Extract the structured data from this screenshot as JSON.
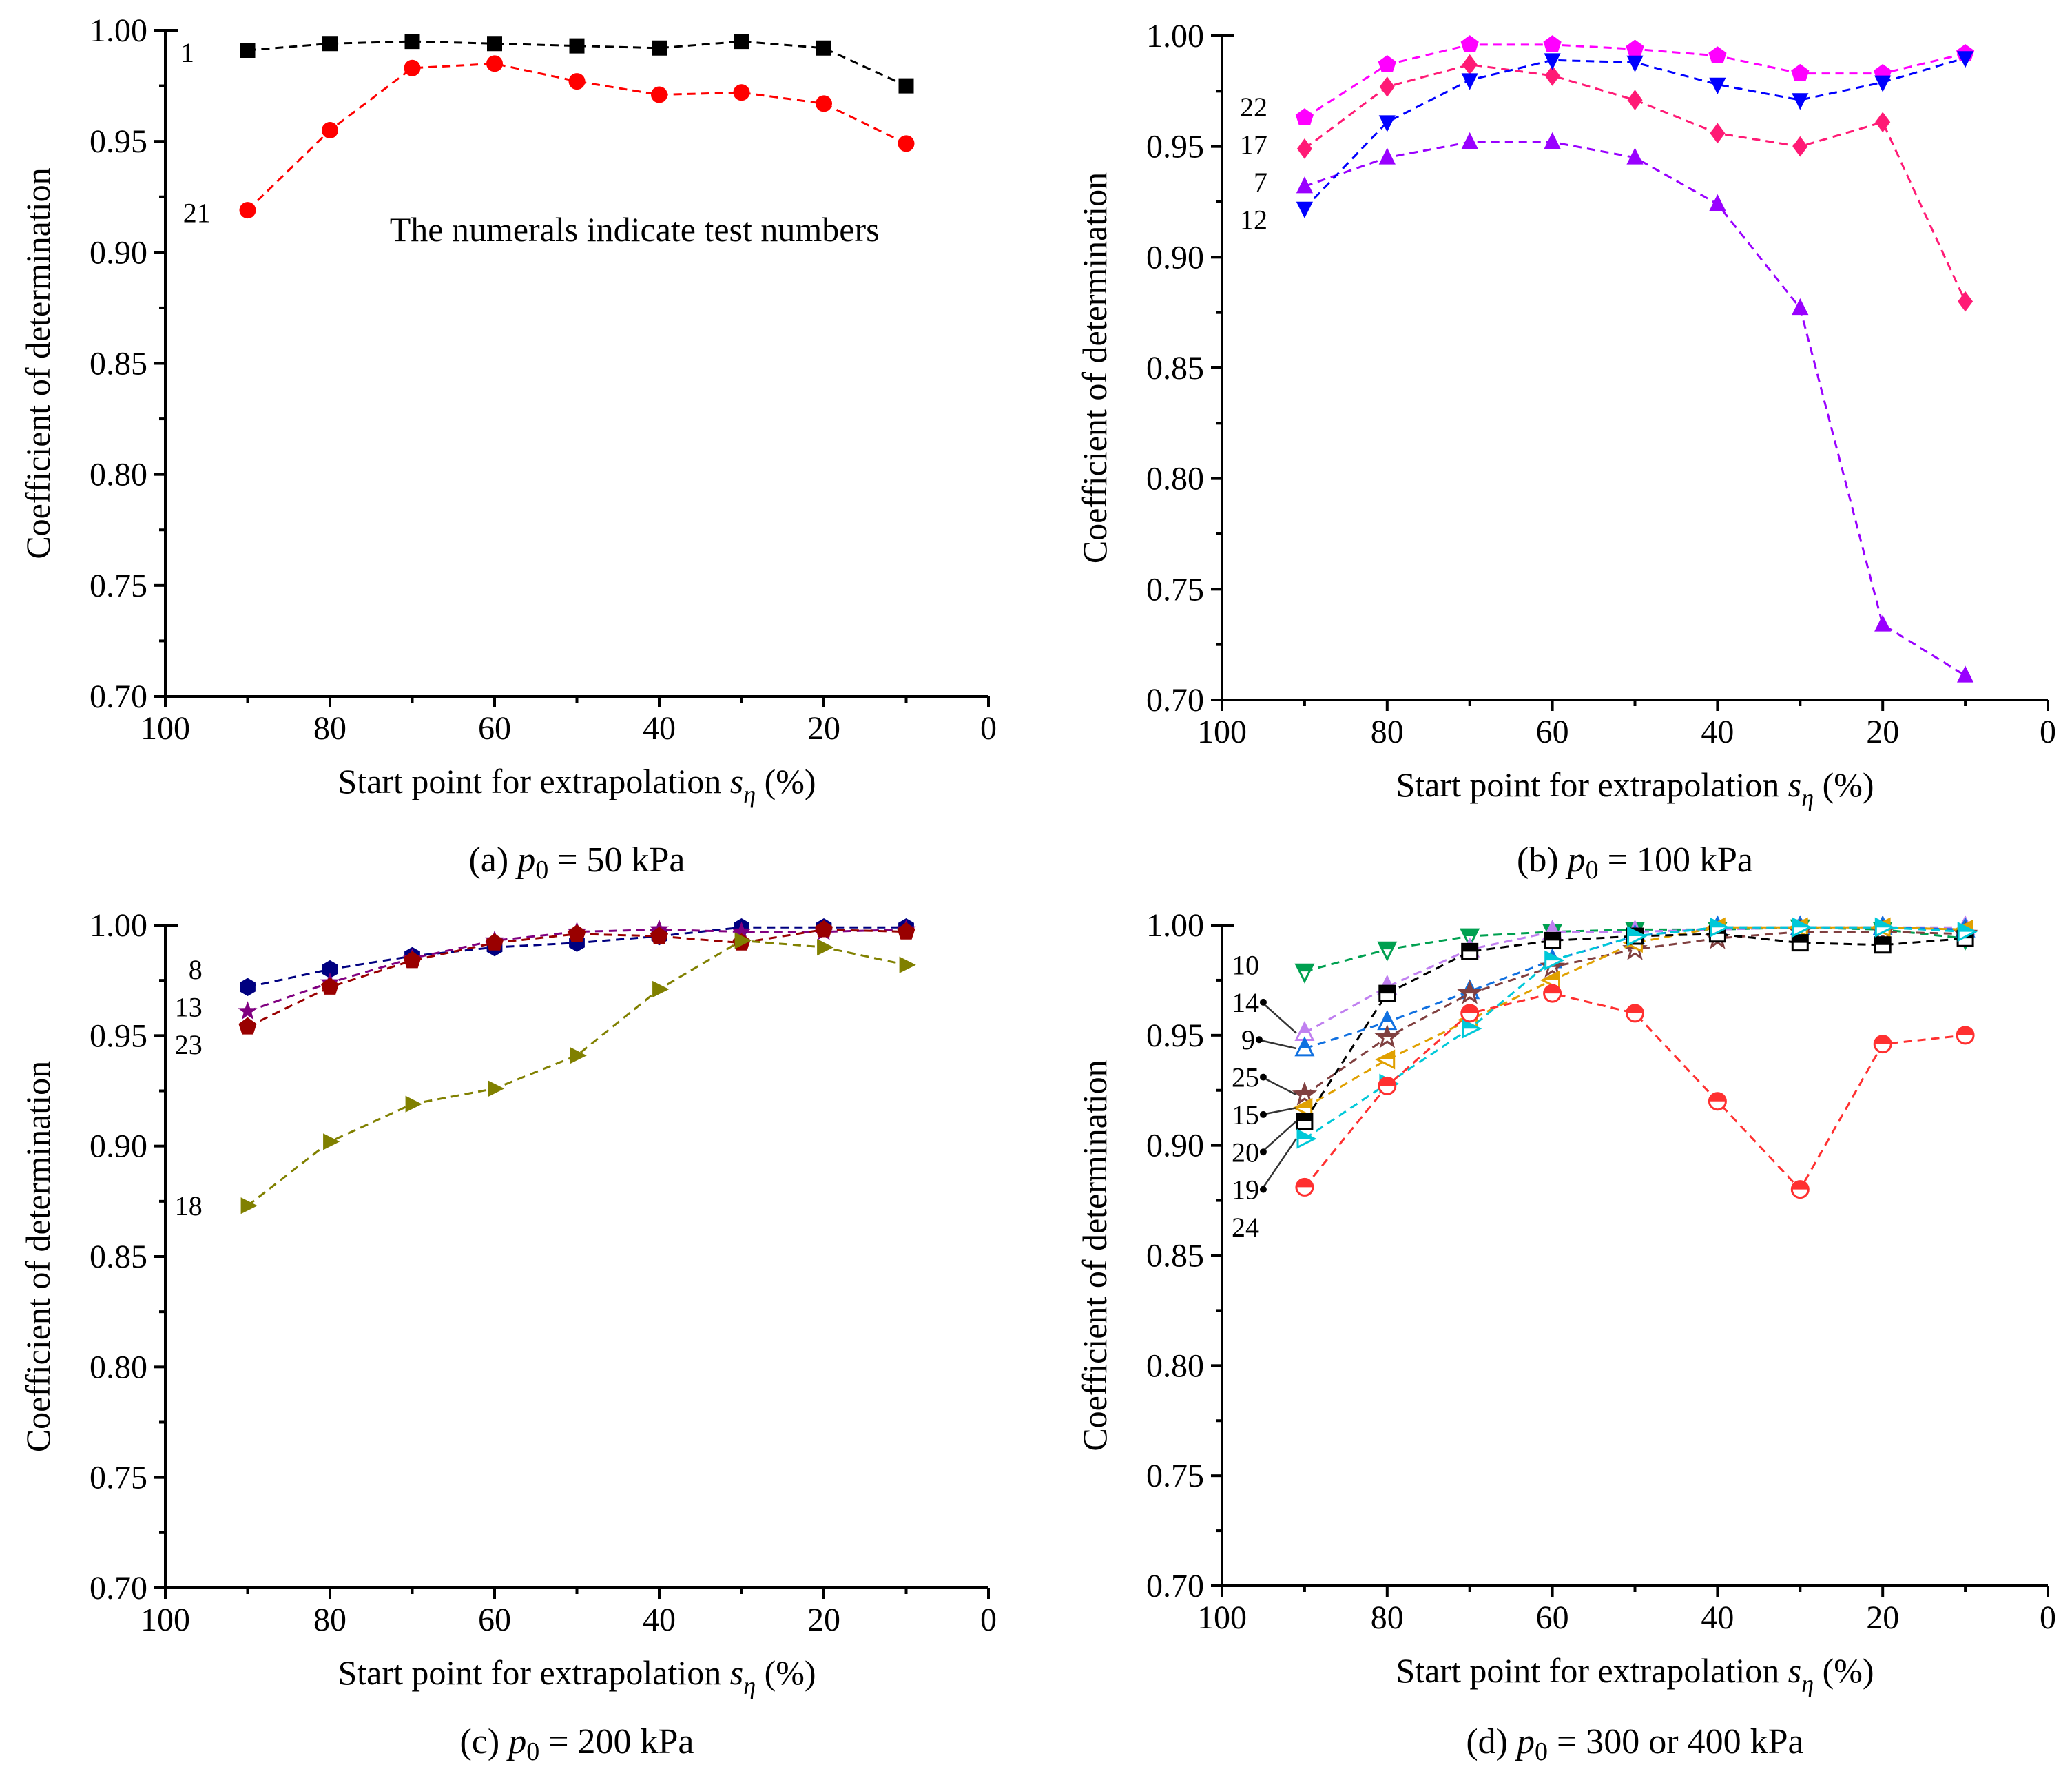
{
  "chart_data": [
    {
      "id": "a",
      "type": "line",
      "caption_prefix": "(a) ",
      "caption_var": "p",
      "caption_sub": "0",
      "caption_rest": " = 50 kPa",
      "xlabel": "Start point for extrapolation ",
      "xlabel_var": "s",
      "xlabel_sub": "η",
      "xlabel_unit": " (%)",
      "ylabel": "Coefficient of determination",
      "xlim": [
        100,
        0
      ],
      "ylim": [
        0.7,
        1.0
      ],
      "xticks": [
        "100",
        "80",
        "60",
        "40",
        "20",
        "0"
      ],
      "yticks": [
        "0.70",
        "0.75",
        "0.80",
        "0.85",
        "0.90",
        "0.95",
        "1.00"
      ],
      "annotation": "The numerals indicate test numbers",
      "x": [
        90,
        80,
        70,
        60,
        50,
        40,
        30,
        20,
        10
      ],
      "series": [
        {
          "name": "1",
          "marker": "square",
          "color": "#000000",
          "values": [
            0.991,
            0.994,
            0.995,
            0.994,
            0.993,
            0.992,
            0.995,
            0.992,
            0.975
          ]
        },
        {
          "name": "21",
          "marker": "circle",
          "color": "#ff0000",
          "values": [
            0.919,
            0.955,
            0.983,
            0.985,
            0.977,
            0.971,
            0.972,
            0.967,
            0.949
          ]
        }
      ]
    },
    {
      "id": "b",
      "type": "line",
      "caption_prefix": "(b) ",
      "caption_var": "p",
      "caption_sub": "0",
      "caption_rest": " = 100 kPa",
      "xlabel": "Start point for extrapolation ",
      "xlabel_var": "s",
      "xlabel_sub": "η",
      "xlabel_unit": " (%)",
      "ylabel": "Coefficient of determination",
      "xlim": [
        100,
        0
      ],
      "ylim": [
        0.7,
        1.0
      ],
      "xticks": [
        "100",
        "80",
        "60",
        "40",
        "20",
        "0"
      ],
      "yticks": [
        "0.70",
        "0.75",
        "0.80",
        "0.85",
        "0.90",
        "0.95",
        "1.00"
      ],
      "x": [
        90,
        80,
        70,
        60,
        50,
        40,
        30,
        20,
        10
      ],
      "series": [
        {
          "name": "22",
          "marker": "pentagon",
          "color": "#ff00ff",
          "values": [
            0.963,
            0.987,
            0.996,
            0.996,
            0.994,
            0.991,
            0.983,
            0.983,
            0.992
          ]
        },
        {
          "name": "17",
          "marker": "diamond",
          "color": "#ff1a75",
          "values": [
            0.949,
            0.977,
            0.987,
            0.982,
            0.971,
            0.956,
            0.95,
            0.961,
            0.88
          ]
        },
        {
          "name": "7",
          "marker": "triangle-up",
          "color": "#9900ff",
          "values": [
            0.932,
            0.945,
            0.952,
            0.952,
            0.945,
            0.924,
            0.877,
            0.734,
            0.711
          ]
        },
        {
          "name": "12",
          "marker": "triangle-down",
          "color": "#0000ff",
          "values": [
            0.922,
            0.961,
            0.98,
            0.989,
            0.988,
            0.978,
            0.971,
            0.979,
            0.99
          ]
        }
      ]
    },
    {
      "id": "c",
      "type": "line",
      "caption_prefix": "(c) ",
      "caption_var": "p",
      "caption_sub": "0",
      "caption_rest": " = 200 kPa",
      "xlabel": "Start point for extrapolation ",
      "xlabel_var": "s",
      "xlabel_sub": "η",
      "xlabel_unit": " (%)",
      "ylabel": "Coefficient of determination",
      "xlim": [
        100,
        0
      ],
      "ylim": [
        0.7,
        1.0
      ],
      "xticks": [
        "100",
        "80",
        "60",
        "40",
        "20",
        "0"
      ],
      "yticks": [
        "0.70",
        "0.75",
        "0.80",
        "0.85",
        "0.90",
        "0.95",
        "1.00"
      ],
      "x": [
        90,
        80,
        70,
        60,
        50,
        40,
        30,
        20,
        10
      ],
      "series": [
        {
          "name": "8",
          "marker": "hexagon",
          "color": "#000080",
          "values": [
            0.972,
            0.98,
            0.986,
            0.99,
            0.992,
            0.995,
            0.999,
            0.999,
            0.999
          ]
        },
        {
          "name": "13",
          "marker": "star",
          "color": "#800080",
          "values": [
            0.961,
            0.974,
            0.985,
            0.993,
            0.997,
            0.998,
            0.997,
            0.997,
            0.998
          ]
        },
        {
          "name": "23",
          "marker": "pentagon",
          "color": "#990000",
          "values": [
            0.954,
            0.972,
            0.984,
            0.992,
            0.996,
            0.995,
            0.992,
            0.998,
            0.997
          ]
        },
        {
          "name": "18",
          "marker": "triangle-right",
          "color": "#808000",
          "values": [
            0.873,
            0.902,
            0.919,
            0.926,
            0.941,
            0.971,
            0.993,
            0.99,
            0.982
          ]
        }
      ]
    },
    {
      "id": "d",
      "type": "line",
      "caption_prefix": "(d) ",
      "caption_var": "p",
      "caption_sub": "0",
      "caption_rest": " = 300 or 400 kPa",
      "xlabel": "Start point for extrapolation ",
      "xlabel_var": "s",
      "xlabel_sub": "η",
      "xlabel_unit": " (%)",
      "ylabel": "Coefficient of determination",
      "xlim": [
        100,
        0
      ],
      "ylim": [
        0.7,
        1.0
      ],
      "xticks": [
        "100",
        "80",
        "60",
        "40",
        "20",
        "0"
      ],
      "yticks": [
        "0.70",
        "0.75",
        "0.80",
        "0.85",
        "0.90",
        "0.95",
        "1.00"
      ],
      "x": [
        90,
        80,
        70,
        60,
        50,
        40,
        30,
        20,
        10
      ],
      "series": [
        {
          "name": "10",
          "marker": "triangle-down",
          "color": "#00a050",
          "values": [
            0.979,
            0.989,
            0.995,
            0.997,
            0.998,
            0.998,
            0.999,
            0.998,
            0.994
          ]
        },
        {
          "name": "14",
          "marker": "triangle-up",
          "color": "#c080f0",
          "values": [
            0.951,
            0.972,
            0.989,
            0.997,
            0.997,
            0.998,
            0.999,
            0.999,
            0.999
          ]
        },
        {
          "name": "9",
          "marker": "triangle-up",
          "color": "#1070e0",
          "values": [
            0.944,
            0.956,
            0.97,
            0.984,
            0.995,
            0.999,
            0.999,
            0.999,
            0.998
          ]
        },
        {
          "name": "25",
          "marker": "star",
          "color": "#804040",
          "values": [
            0.923,
            0.949,
            0.969,
            0.981,
            0.989,
            0.994,
            0.997,
            0.997,
            0.996
          ]
        },
        {
          "name": "15",
          "marker": "triangle-left",
          "color": "#e0a000",
          "values": [
            0.917,
            0.939,
            0.957,
            0.975,
            0.992,
            0.999,
            0.999,
            0.999,
            0.998
          ]
        },
        {
          "name": "20",
          "marker": "square",
          "color": "#000000",
          "values": [
            0.911,
            0.969,
            0.988,
            0.993,
            0.995,
            0.996,
            0.992,
            0.991,
            0.994
          ]
        },
        {
          "name": "19",
          "marker": "triangle-right",
          "color": "#00c8d8",
          "values": [
            0.903,
            0.928,
            0.953,
            0.984,
            0.995,
            0.999,
            0.999,
            0.999,
            0.997
          ]
        },
        {
          "name": "24",
          "marker": "circle",
          "color": "#ff3030",
          "values": [
            0.881,
            0.927,
            0.96,
            0.969,
            0.96,
            0.92,
            0.88,
            0.946,
            0.95
          ]
        }
      ]
    }
  ]
}
